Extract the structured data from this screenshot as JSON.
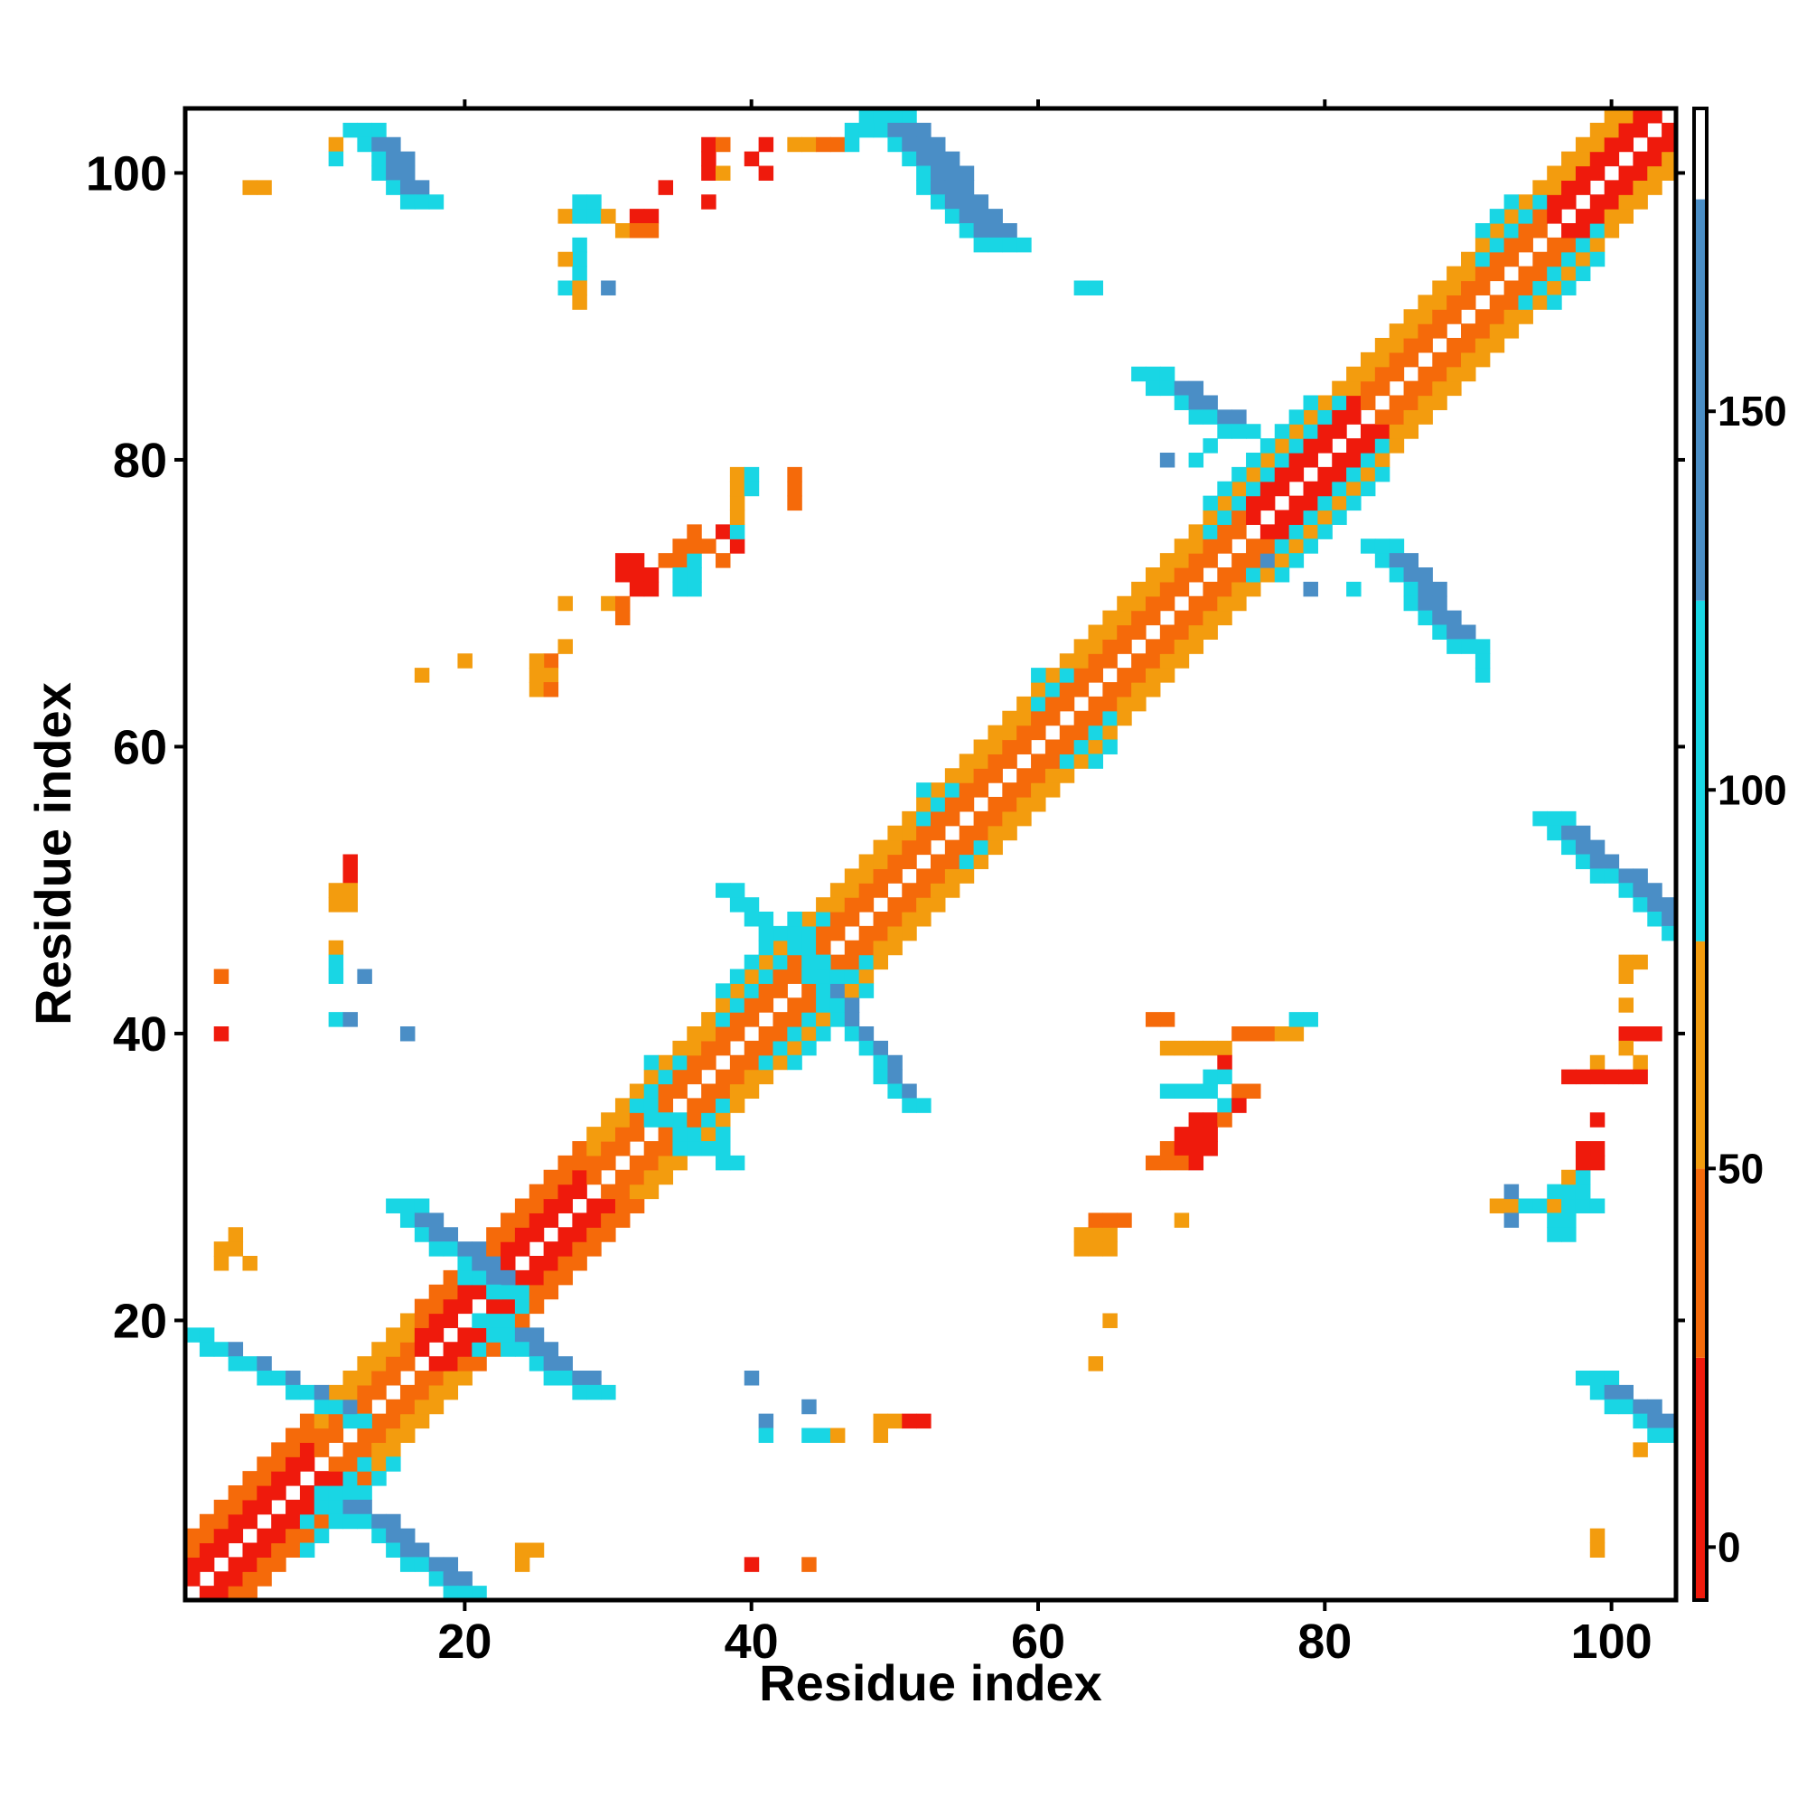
{
  "chart_data": {
    "type": "heatmap",
    "title": "",
    "xlabel": "Residue index",
    "ylabel": "Residue index",
    "xlim": [
      0.5,
      104.5
    ],
    "ylim": [
      0.5,
      104.5
    ],
    "xticks": [
      20,
      40,
      60,
      80,
      100
    ],
    "yticks": [
      20,
      40,
      60,
      80,
      100
    ],
    "grid": false,
    "colorbar": {
      "ticks": [
        0,
        50,
        100,
        150
      ],
      "range": [
        -7,
        190
      ],
      "bands": [
        {
          "from": -7,
          "to": 25,
          "color": "#ef1a0c"
        },
        {
          "from": 25,
          "to": 50,
          "color": "#f56a0a"
        },
        {
          "from": 50,
          "to": 80,
          "color": "#f39c0e"
        },
        {
          "from": 80,
          "to": 125,
          "color": "#19d6e4"
        },
        {
          "from": 125,
          "to": 178,
          "color": "#4a8ec6"
        },
        {
          "from": 178,
          "to": 190,
          "color": "#ffffff"
        }
      ]
    },
    "diagonal_band": {
      "from": 1,
      "to": 104,
      "inner_offsets": [
        1,
        2
      ],
      "outer_offsets": [
        3,
        4
      ]
    },
    "diagonal_segments": [
      {
        "from": 1,
        "to": 9,
        "inner": 5,
        "outer": 30
      },
      {
        "from": 10,
        "to": 16,
        "inner": 30,
        "outer": 60
      },
      {
        "from": 17,
        "to": 28,
        "inner": 10,
        "outer": 40
      },
      {
        "from": 29,
        "to": 45,
        "inner": 30,
        "outer": 60
      },
      {
        "from": 46,
        "to": 74,
        "inner": 30,
        "outer": 60
      },
      {
        "from": 75,
        "to": 82,
        "inner": 10,
        "outer": 60
      },
      {
        "from": 83,
        "to": 95,
        "inner": 30,
        "outer": 60
      },
      {
        "from": 96,
        "to": 104,
        "inner": 5,
        "outer": 60
      }
    ],
    "diagonal_blocks": [
      {
        "x": [
          9,
          16
        ],
        "y": [
          3,
          10
        ],
        "value": 110
      },
      {
        "x": [
          20,
          24
        ],
        "y": [
          18,
          24
        ],
        "value": 110
      },
      {
        "x": [
          33,
          38
        ],
        "y": [
          32,
          38
        ],
        "value": 105
      },
      {
        "x": [
          38,
          48
        ],
        "y": [
          38,
          48
        ],
        "value": 110
      },
      {
        "x": [
          52,
          56
        ],
        "y": [
          52,
          57
        ],
        "value": 105
      },
      {
        "x": [
          60,
          65
        ],
        "y": [
          59,
          65
        ],
        "value": 105
      },
      {
        "x": [
          72,
          84
        ],
        "y": [
          72,
          84
        ],
        "value": 110
      },
      {
        "x": [
          91,
          99
        ],
        "y": [
          91,
          98
        ],
        "value": 110
      }
    ],
    "antidiagonal_strips": [
      {
        "x1": 1,
        "y1": 19,
        "x2": 12,
        "y2": 13,
        "width": 2,
        "value": 150
      },
      {
        "x1": 10,
        "y1": 8,
        "x2": 19,
        "y2": 1,
        "width": 3,
        "value": 150
      },
      {
        "x1": 15,
        "y1": 28,
        "x2": 22,
        "y2": 22,
        "width": 3,
        "value": 150
      },
      {
        "x1": 21,
        "y1": 20,
        "x2": 28,
        "y2": 15,
        "width": 3,
        "value": 150
      },
      {
        "x1": 32,
        "y1": 35,
        "x2": 38,
        "y2": 31,
        "width": 2,
        "value": 110
      },
      {
        "x1": 38,
        "y1": 50,
        "x2": 45,
        "y2": 44,
        "width": 2,
        "value": 110
      },
      {
        "x1": 44,
        "y1": 44,
        "x2": 51,
        "y2": 35,
        "width": 2,
        "value": 130
      },
      {
        "x1": 48,
        "y1": 104,
        "x2": 56,
        "y2": 95,
        "width": 4,
        "value": 155
      },
      {
        "x1": 12,
        "y1": 103,
        "x2": 16,
        "y2": 98,
        "width": 3,
        "value": 150
      },
      {
        "x1": 67,
        "y1": 86,
        "x2": 73,
        "y2": 82,
        "width": 3,
        "value": 150
      },
      {
        "x1": 83,
        "y1": 74,
        "x2": 89,
        "y2": 67,
        "width": 3,
        "value": 150
      },
      {
        "x1": 95,
        "y1": 55,
        "x2": 104,
        "y2": 47,
        "width": 3,
        "value": 150
      },
      {
        "x1": 98,
        "y1": 16,
        "x2": 103,
        "y2": 12,
        "width": 3,
        "value": 150
      }
    ],
    "cells": [
      [
        5,
        99,
        60
      ],
      [
        6,
        99,
        60
      ],
      [
        3,
        25,
        60
      ],
      [
        4,
        25,
        60
      ],
      [
        4,
        26,
        60
      ],
      [
        5,
        24,
        60
      ],
      [
        3,
        24,
        50
      ],
      [
        3,
        44,
        40
      ],
      [
        3,
        40,
        10
      ],
      [
        12,
        52,
        10
      ],
      [
        12,
        51,
        10
      ],
      [
        11,
        50,
        60
      ],
      [
        12,
        50,
        60
      ],
      [
        11,
        49,
        60
      ],
      [
        12,
        49,
        60
      ],
      [
        11,
        46,
        60
      ],
      [
        11,
        45,
        110
      ],
      [
        11,
        44,
        110
      ],
      [
        13,
        44,
        150
      ],
      [
        11,
        41,
        110
      ],
      [
        12,
        41,
        150
      ],
      [
        16,
        40,
        150
      ],
      [
        24,
        4,
        60
      ],
      [
        25,
        4,
        60
      ],
      [
        24,
        3,
        60
      ],
      [
        40,
        3,
        10
      ],
      [
        44,
        3,
        40
      ],
      [
        40,
        16,
        150
      ],
      [
        41,
        13,
        150
      ],
      [
        41,
        12,
        110
      ],
      [
        44,
        14,
        150
      ],
      [
        44,
        12,
        110
      ],
      [
        45,
        12,
        110
      ],
      [
        46,
        12,
        60
      ],
      [
        49,
        13,
        60
      ],
      [
        50,
        13,
        60
      ],
      [
        49,
        12,
        60
      ],
      [
        51,
        13,
        10
      ],
      [
        52,
        13,
        10
      ],
      [
        65,
        20,
        60
      ],
      [
        64,
        17,
        60
      ],
      [
        11,
        102,
        60
      ],
      [
        11,
        101,
        110
      ],
      [
        12,
        103,
        110
      ],
      [
        27,
        97,
        60
      ],
      [
        28,
        98,
        110
      ],
      [
        29,
        98,
        110
      ],
      [
        28,
        97,
        110
      ],
      [
        29,
        97,
        110
      ],
      [
        30,
        97,
        60
      ],
      [
        31,
        96,
        60
      ],
      [
        32,
        97,
        10
      ],
      [
        33,
        97,
        10
      ],
      [
        32,
        96,
        40
      ],
      [
        33,
        96,
        40
      ],
      [
        28,
        95,
        110
      ],
      [
        28,
        94,
        110
      ],
      [
        27,
        94,
        60
      ],
      [
        28,
        93,
        110
      ],
      [
        27,
        92,
        110
      ],
      [
        28,
        92,
        60
      ],
      [
        30,
        92,
        150
      ],
      [
        28,
        91,
        60
      ],
      [
        34,
        99,
        10
      ],
      [
        37,
        102,
        10
      ],
      [
        37,
        101,
        10
      ],
      [
        37,
        100,
        10
      ],
      [
        37,
        98,
        10
      ],
      [
        38,
        102,
        40
      ],
      [
        38,
        100,
        60
      ],
      [
        40,
        101,
        10
      ],
      [
        41,
        102,
        10
      ],
      [
        41,
        100,
        10
      ],
      [
        43,
        102,
        60
      ],
      [
        44,
        102,
        60
      ],
      [
        45,
        102,
        40
      ],
      [
        46,
        102,
        40
      ],
      [
        47,
        102,
        110
      ],
      [
        47,
        103,
        110
      ],
      [
        48,
        103,
        110
      ],
      [
        49,
        103,
        110
      ],
      [
        63,
        92,
        110
      ],
      [
        64,
        92,
        110
      ],
      [
        31,
        73,
        10
      ],
      [
        31,
        72,
        10
      ],
      [
        32,
        72,
        10
      ],
      [
        32,
        71,
        10
      ],
      [
        33,
        71,
        10
      ],
      [
        33,
        72,
        10
      ],
      [
        32,
        73,
        10
      ],
      [
        30,
        70,
        60
      ],
      [
        31,
        70,
        40
      ],
      [
        31,
        69,
        40
      ],
      [
        34,
        73,
        40
      ],
      [
        35,
        73,
        40
      ],
      [
        35,
        72,
        110
      ],
      [
        36,
        73,
        110
      ],
      [
        36,
        72,
        110
      ],
      [
        35,
        71,
        110
      ],
      [
        36,
        71,
        110
      ],
      [
        35,
        74,
        40
      ],
      [
        36,
        75,
        40
      ],
      [
        36,
        74,
        40
      ],
      [
        37,
        74,
        40
      ],
      [
        38,
        75,
        10
      ],
      [
        39,
        74,
        10
      ],
      [
        38,
        73,
        40
      ],
      [
        39,
        75,
        110
      ],
      [
        39,
        76,
        60
      ],
      [
        39,
        77,
        60
      ],
      [
        39,
        78,
        60
      ],
      [
        39,
        79,
        60
      ],
      [
        40,
        79,
        110
      ],
      [
        40,
        78,
        110
      ],
      [
        43,
        79,
        40
      ],
      [
        43,
        78,
        40
      ],
      [
        43,
        77,
        40
      ],
      [
        27,
        70,
        60
      ],
      [
        27,
        67,
        60
      ],
      [
        26,
        66,
        40
      ],
      [
        25,
        66,
        60
      ],
      [
        25,
        65,
        60
      ],
      [
        26,
        65,
        60
      ],
      [
        25,
        64,
        60
      ],
      [
        26,
        64,
        40
      ],
      [
        17,
        65,
        60
      ],
      [
        20,
        66,
        60
      ],
      [
        68,
        41,
        40
      ],
      [
        69,
        41,
        40
      ],
      [
        69,
        39,
        60
      ],
      [
        70,
        39,
        60
      ],
      [
        71,
        39,
        60
      ],
      [
        72,
        39,
        60
      ],
      [
        73,
        39,
        60
      ],
      [
        74,
        40,
        40
      ],
      [
        75,
        40,
        40
      ],
      [
        76,
        40,
        40
      ],
      [
        77,
        40,
        60
      ],
      [
        78,
        40,
        60
      ],
      [
        78,
        41,
        110
      ],
      [
        79,
        41,
        110
      ],
      [
        73,
        38,
        10
      ],
      [
        72,
        37,
        110
      ],
      [
        73,
        37,
        110
      ],
      [
        74,
        36,
        40
      ],
      [
        75,
        36,
        40
      ],
      [
        69,
        36,
        110
      ],
      [
        70,
        36,
        110
      ],
      [
        71,
        36,
        110
      ],
      [
        72,
        36,
        110
      ],
      [
        73,
        35,
        110
      ],
      [
        74,
        35,
        10
      ],
      [
        72,
        34,
        10
      ],
      [
        71,
        34,
        10
      ],
      [
        73,
        34,
        40
      ],
      [
        70,
        33,
        10
      ],
      [
        71,
        33,
        10
      ],
      [
        72,
        33,
        10
      ],
      [
        69,
        32,
        40
      ],
      [
        70,
        32,
        10
      ],
      [
        71,
        32,
        10
      ],
      [
        72,
        32,
        10
      ],
      [
        68,
        31,
        40
      ],
      [
        69,
        31,
        40
      ],
      [
        70,
        31,
        40
      ],
      [
        71,
        31,
        10
      ],
      [
        63,
        26,
        60
      ],
      [
        64,
        26,
        60
      ],
      [
        65,
        26,
        60
      ],
      [
        63,
        25,
        60
      ],
      [
        64,
        25,
        60
      ],
      [
        65,
        25,
        60
      ],
      [
        64,
        27,
        40
      ],
      [
        65,
        27,
        40
      ],
      [
        66,
        27,
        40
      ],
      [
        70,
        27,
        60
      ],
      [
        92,
        28,
        60
      ],
      [
        93,
        28,
        60
      ],
      [
        94,
        28,
        110
      ],
      [
        95,
        28,
        110
      ],
      [
        96,
        28,
        60
      ],
      [
        97,
        28,
        110
      ],
      [
        98,
        28,
        110
      ],
      [
        99,
        28,
        110
      ],
      [
        93,
        29,
        150
      ],
      [
        96,
        29,
        110
      ],
      [
        97,
        29,
        110
      ],
      [
        98,
        29,
        110
      ],
      [
        97,
        30,
        60
      ],
      [
        98,
        30,
        110
      ],
      [
        98,
        31,
        10
      ],
      [
        99,
        31,
        10
      ],
      [
        99,
        32,
        10
      ],
      [
        98,
        32,
        10
      ],
      [
        96,
        27,
        110
      ],
      [
        97,
        27,
        110
      ],
      [
        97,
        26,
        110
      ],
      [
        96,
        26,
        110
      ],
      [
        93,
        27,
        150
      ],
      [
        101,
        45,
        60
      ],
      [
        102,
        45,
        60
      ],
      [
        101,
        44,
        60
      ],
      [
        101,
        42,
        60
      ],
      [
        101,
        40,
        10
      ],
      [
        102,
        40,
        10
      ],
      [
        103,
        40,
        10
      ],
      [
        101,
        39,
        60
      ],
      [
        99,
        38,
        60
      ],
      [
        102,
        38,
        60
      ],
      [
        97,
        37,
        10
      ],
      [
        98,
        37,
        10
      ],
      [
        99,
        37,
        10
      ],
      [
        100,
        37,
        10
      ],
      [
        101,
        37,
        10
      ],
      [
        102,
        37,
        10
      ],
      [
        99,
        34,
        10
      ],
      [
        102,
        11,
        60
      ],
      [
        99,
        5,
        60
      ],
      [
        99,
        4,
        60
      ],
      [
        69,
        80,
        150
      ],
      [
        71,
        80,
        110
      ],
      [
        72,
        81,
        110
      ],
      [
        76,
        73,
        150
      ],
      [
        79,
        71,
        150
      ],
      [
        82,
        71,
        110
      ],
      [
        91,
        66,
        110
      ],
      [
        91,
        65,
        110
      ]
    ]
  }
}
